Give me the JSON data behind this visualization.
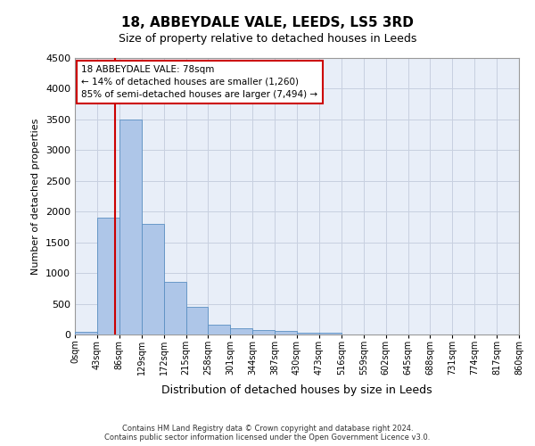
{
  "title1": "18, ABBEYDALE VALE, LEEDS, LS5 3RD",
  "title2": "Size of property relative to detached houses in Leeds",
  "xlabel": "Distribution of detached houses by size in Leeds",
  "ylabel": "Number of detached properties",
  "bin_edges": [
    0,
    43,
    86,
    129,
    172,
    215,
    258,
    301,
    344,
    387,
    430,
    473,
    516,
    559,
    602,
    645,
    688,
    731,
    774,
    817,
    860
  ],
  "bar_heights": [
    50,
    1900,
    3500,
    1800,
    850,
    450,
    160,
    100,
    75,
    60,
    30,
    30,
    0,
    0,
    0,
    0,
    0,
    0,
    0,
    0
  ],
  "bar_color": "#aec6e8",
  "bar_edge_color": "#5a8fc2",
  "grid_color": "#c8d0e0",
  "bg_color": "#e8eef8",
  "property_sqm": 78,
  "vline_color": "#cc0000",
  "annotation_title": "18 ABBEYDALE VALE: 78sqm",
  "annotation_line1": "← 14% of detached houses are smaller (1,260)",
  "annotation_line2": "85% of semi-detached houses are larger (7,494) →",
  "annotation_box_color": "#cc0000",
  "ylim": [
    0,
    4500
  ],
  "yticks": [
    0,
    500,
    1000,
    1500,
    2000,
    2500,
    3000,
    3500,
    4000,
    4500
  ],
  "footer1": "Contains HM Land Registry data © Crown copyright and database right 2024.",
  "footer2": "Contains public sector information licensed under the Open Government Licence v3.0.",
  "tick_labels": [
    "0sqm",
    "43sqm",
    "86sqm",
    "129sqm",
    "172sqm",
    "215sqm",
    "258sqm",
    "301sqm",
    "344sqm",
    "387sqm",
    "430sqm",
    "473sqm",
    "516sqm",
    "559sqm",
    "602sqm",
    "645sqm",
    "688sqm",
    "731sqm",
    "774sqm",
    "817sqm",
    "860sqm"
  ]
}
